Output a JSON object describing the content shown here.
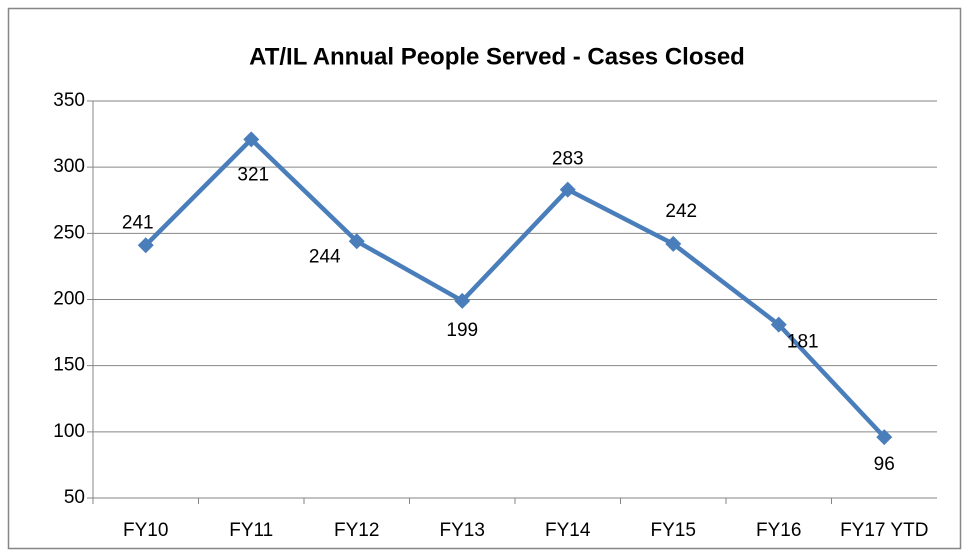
{
  "chart_data": {
    "type": "line",
    "title": "AT/IL Annual People Served - Cases Closed",
    "categories": [
      "FY10",
      "FY11",
      "FY12",
      "FY13",
      "FY14",
      "FY15",
      "FY16",
      "FY17 YTD"
    ],
    "series": [
      {
        "color": "#4a7ebb",
        "values": [
          241,
          321,
          244,
          199,
          283,
          242,
          181,
          96
        ]
      }
    ],
    "ylim": [
      50,
      350
    ],
    "yticks": [
      50,
      100,
      150,
      200,
      250,
      300,
      350
    ],
    "grid": true
  }
}
